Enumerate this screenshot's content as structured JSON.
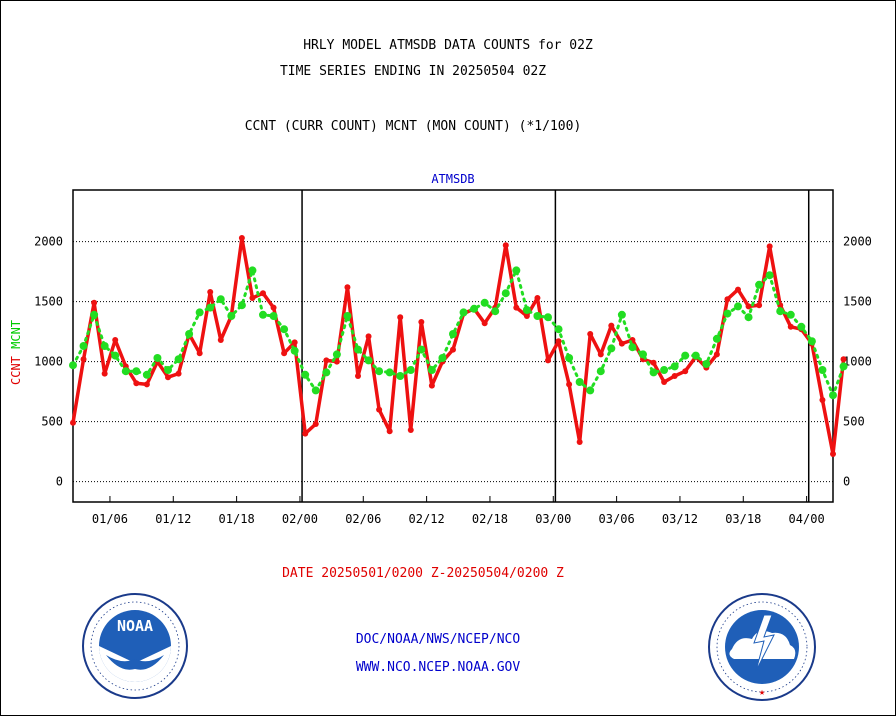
{
  "header": {
    "title": "HRLY MODEL ATMSDB DATA COUNTS for 02Z",
    "subtitle": "TIME SERIES ENDING IN 20250504 02Z",
    "legend_line": "CCNT (CURR COUNT) MCNT (MON COUNT) (*1/100)"
  },
  "footer": {
    "date_range": "DATE 20250501/0200 Z-20250504/0200 Z",
    "org": "DOC/NOAA/NWS/NCEP/NCO",
    "url": "WWW.NCO.NCEP.NOAA.GOV"
  },
  "logos": {
    "noaa": {
      "text": "NOAA",
      "ring_text": "NATIONAL OCEANIC AND ATMOSPHERIC ADMINISTRATION · U.S. DEPARTMENT OF COMMERCE"
    },
    "nws": {
      "ring_text": "NATIONAL WEATHER SERVICE"
    }
  },
  "chart_data": {
    "type": "line",
    "title": "ATMSDB",
    "ylabel_parts": [
      {
        "text": "CCNT",
        "color": "#e00000"
      },
      {
        "text": "MCNT",
        "color": "#00cc00"
      }
    ],
    "ylim": [
      -170,
      2430
    ],
    "yticks": [
      0,
      500,
      1000,
      1500,
      2000
    ],
    "ytick_labels": [
      "0",
      "500",
      "1000",
      "1500",
      "2000"
    ],
    "xlim": [
      0,
      72
    ],
    "xticks": [
      {
        "x": 3.5,
        "label": "01/06"
      },
      {
        "x": 9.5,
        "label": "01/12"
      },
      {
        "x": 15.5,
        "label": "01/18"
      },
      {
        "x": 21.5,
        "label": "02/00"
      },
      {
        "x": 27.5,
        "label": "02/06"
      },
      {
        "x": 33.5,
        "label": "02/12"
      },
      {
        "x": 39.5,
        "label": "02/18"
      },
      {
        "x": 45.5,
        "label": "03/00"
      },
      {
        "x": 51.5,
        "label": "03/06"
      },
      {
        "x": 57.5,
        "label": "03/12"
      },
      {
        "x": 63.5,
        "label": "03/18"
      },
      {
        "x": 69.5,
        "label": "04/00"
      }
    ],
    "day_boundaries": [
      21.7,
      45.7,
      69.7
    ],
    "grid": true,
    "series": [
      {
        "name": "CCNT",
        "color": "#ee1111",
        "values": [
          490,
          1020,
          1490,
          900,
          1180,
          960,
          820,
          810,
          1000,
          870,
          900,
          1230,
          1070,
          1580,
          1180,
          1380,
          2030,
          1530,
          1570,
          1450,
          1070,
          1160,
          400,
          480,
          1010,
          1000,
          1620,
          880,
          1210,
          600,
          420,
          1370,
          430,
          1330,
          800,
          1000,
          1100,
          1400,
          1440,
          1320,
          1450,
          1970,
          1450,
          1380,
          1530,
          1010,
          1170,
          810,
          330,
          1230,
          1060,
          1300,
          1150,
          1180,
          1020,
          990,
          830,
          880,
          920,
          1040,
          950,
          1060,
          1520,
          1600,
          1460,
          1470,
          1960,
          1470,
          1290,
          1270,
          1150,
          680,
          230,
          1020
        ]
      },
      {
        "name": "MCNT",
        "color": "#22dd22",
        "values": [
          970,
          1130,
          1390,
          1130,
          1050,
          920,
          920,
          890,
          1030,
          930,
          1020,
          1230,
          1410,
          1450,
          1520,
          1380,
          1470,
          1760,
          1390,
          1380,
          1270,
          1090,
          890,
          760,
          910,
          1060,
          1380,
          1100,
          1010,
          920,
          910,
          880,
          930,
          1100,
          930,
          1030,
          1230,
          1410,
          1440,
          1490,
          1420,
          1570,
          1760,
          1430,
          1380,
          1370,
          1270,
          1030,
          830,
          760,
          920,
          1110,
          1390,
          1120,
          1060,
          910,
          930,
          960,
          1050,
          1050,
          980,
          1190,
          1400,
          1460,
          1370,
          1640,
          1720,
          1420,
          1390,
          1290,
          1170,
          930,
          720,
          960
        ]
      }
    ]
  }
}
